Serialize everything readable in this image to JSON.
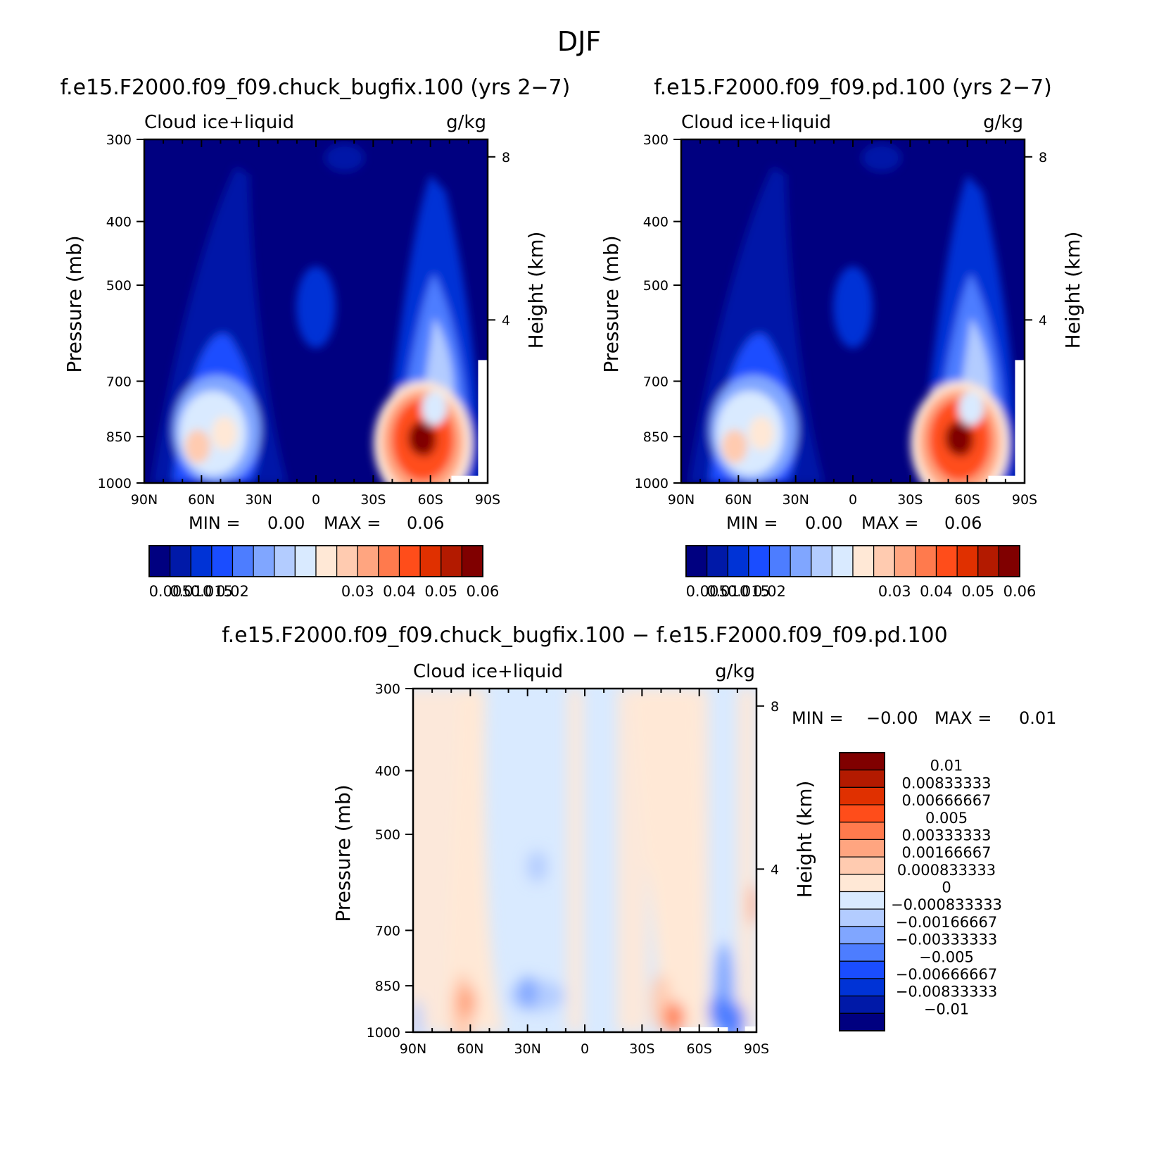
{
  "page_title": "DJF",
  "colors": {
    "pos_levels": [
      "#000080",
      "#0019a8",
      "#0033d6",
      "#1a4dff",
      "#4d7dff",
      "#80a6ff",
      "#b3ccff",
      "#d9eaff",
      "#ffe8d6",
      "#ffcbb0",
      "#ffa580",
      "#ff7a4d",
      "#ff4d1a",
      "#e03000",
      "#b31a00",
      "#800000"
    ],
    "diff_levels": [
      "#000080",
      "#0019a8",
      "#0033d6",
      "#1a4dff",
      "#4d7dff",
      "#80a6ff",
      "#b3ccff",
      "#d9eaff",
      "#ffe8d6",
      "#ffcbb0",
      "#ffa580",
      "#ff7a4d",
      "#ff4d1a",
      "#e03000",
      "#b31a00",
      "#800000"
    ]
  },
  "chart_data": [
    {
      "type": "heatmap",
      "title": "f.e15.F2000.f09_f09.chuck_bugfix.100 (yrs 2−7)",
      "left_label": "Cloud  ice+liquid",
      "right_label": "g/kg",
      "ylabel": "Pressure  (mb)",
      "y2label": "Height  (km)",
      "xlabel": "",
      "x_ticks": [
        "90N",
        "60N",
        "30N",
        "0",
        "30S",
        "60S",
        "90S"
      ],
      "xlim": [
        90,
        -90
      ],
      "y_ticks": [
        "300",
        "400",
        "500",
        "700",
        "850",
        "1000"
      ],
      "y_tick_values": [
        300,
        400,
        500,
        700,
        850,
        1000
      ],
      "ylim": [
        1000,
        300
      ],
      "y2_ticks": [
        "8",
        "4"
      ],
      "y2_tick_values": [
        8,
        4
      ],
      "min_label": "MIN =",
      "min_value": "0.00",
      "max_label": "MAX =",
      "max_value": "0.06",
      "colorbar_labels": [
        "0.005",
        "0.010",
        "0.015",
        "0.02",
        "0.03",
        "0.04",
        "0.05",
        "0.06"
      ],
      "blobs": [
        {
          "lat": 62,
          "p": 880,
          "level": 9
        },
        {
          "lat": 48,
          "p": 840,
          "level": 8
        },
        {
          "lat": -57,
          "p": 860,
          "level": 14
        },
        {
          "lat": -55,
          "p": 855,
          "level": 15
        },
        {
          "lat": -62,
          "p": 770,
          "level": 7
        },
        {
          "lat": 0,
          "p": 530,
          "level": 2
        }
      ]
    },
    {
      "type": "heatmap",
      "title": "f.e15.F2000.f09_f09.pd.100 (yrs 2−7)",
      "left_label": "Cloud  ice+liquid",
      "right_label": "g/kg",
      "ylabel": "Pressure  (mb)",
      "y2label": "Height  (km)",
      "xlabel": "",
      "x_ticks": [
        "90N",
        "60N",
        "30N",
        "0",
        "30S",
        "60S",
        "90S"
      ],
      "xlim": [
        90,
        -90
      ],
      "y_ticks": [
        "300",
        "400",
        "500",
        "700",
        "850",
        "1000"
      ],
      "y_tick_values": [
        300,
        400,
        500,
        700,
        850,
        1000
      ],
      "ylim": [
        1000,
        300
      ],
      "y2_ticks": [
        "8",
        "4"
      ],
      "y2_tick_values": [
        8,
        4
      ],
      "min_label": "MIN =",
      "min_value": "0.00",
      "max_label": "MAX =",
      "max_value": "0.06",
      "colorbar_labels": [
        "0.005",
        "0.010",
        "0.015",
        "0.02",
        "0.03",
        "0.04",
        "0.05",
        "0.06"
      ],
      "blobs": [
        {
          "lat": 62,
          "p": 880,
          "level": 9
        },
        {
          "lat": 48,
          "p": 840,
          "level": 8
        },
        {
          "lat": -57,
          "p": 860,
          "level": 14
        },
        {
          "lat": -55,
          "p": 855,
          "level": 15
        },
        {
          "lat": -62,
          "p": 770,
          "level": 7
        },
        {
          "lat": 0,
          "p": 530,
          "level": 2
        }
      ]
    },
    {
      "type": "heatmap",
      "title": "f.e15.F2000.f09_f09.chuck_bugfix.100 − f.e15.F2000.f09_f09.pd.100",
      "left_label": "Cloud  ice+liquid",
      "right_label": "g/kg",
      "ylabel": "Pressure  (mb)",
      "y2label": "Height  (km)",
      "xlabel": "",
      "x_ticks": [
        "90N",
        "60N",
        "30N",
        "0",
        "30S",
        "60S",
        "90S"
      ],
      "xlim": [
        90,
        -90
      ],
      "y_ticks": [
        "300",
        "400",
        "500",
        "700",
        "850",
        "1000"
      ],
      "y_tick_values": [
        300,
        400,
        500,
        700,
        850,
        1000
      ],
      "ylim": [
        1000,
        300
      ],
      "y2_ticks": [
        "8",
        "4"
      ],
      "y2_tick_values": [
        8,
        4
      ],
      "min_label": "MIN =",
      "min_value": "−0.00",
      "max_label": "MAX =",
      "max_value": "0.01",
      "colorbar_labels": [
        "0.01",
        "0.00833333",
        "0.00666667",
        "0.005",
        "0.00333333",
        "0.00166667",
        "0.000833333",
        "0",
        "−0.000833333",
        "−0.00166667",
        "−0.00333333",
        "−0.005",
        "−0.00666667",
        "−0.00833333",
        "−0.01"
      ],
      "blobs": [
        {
          "lat": -47,
          "p": 950,
          "level": 11
        },
        {
          "lat": 62,
          "p": 900,
          "level": 10
        },
        {
          "lat": 30,
          "p": 870,
          "level": 5
        },
        {
          "lat": -70,
          "p": 930,
          "level": 4
        },
        {
          "lat": 25,
          "p": 560,
          "level": 6
        }
      ]
    }
  ]
}
